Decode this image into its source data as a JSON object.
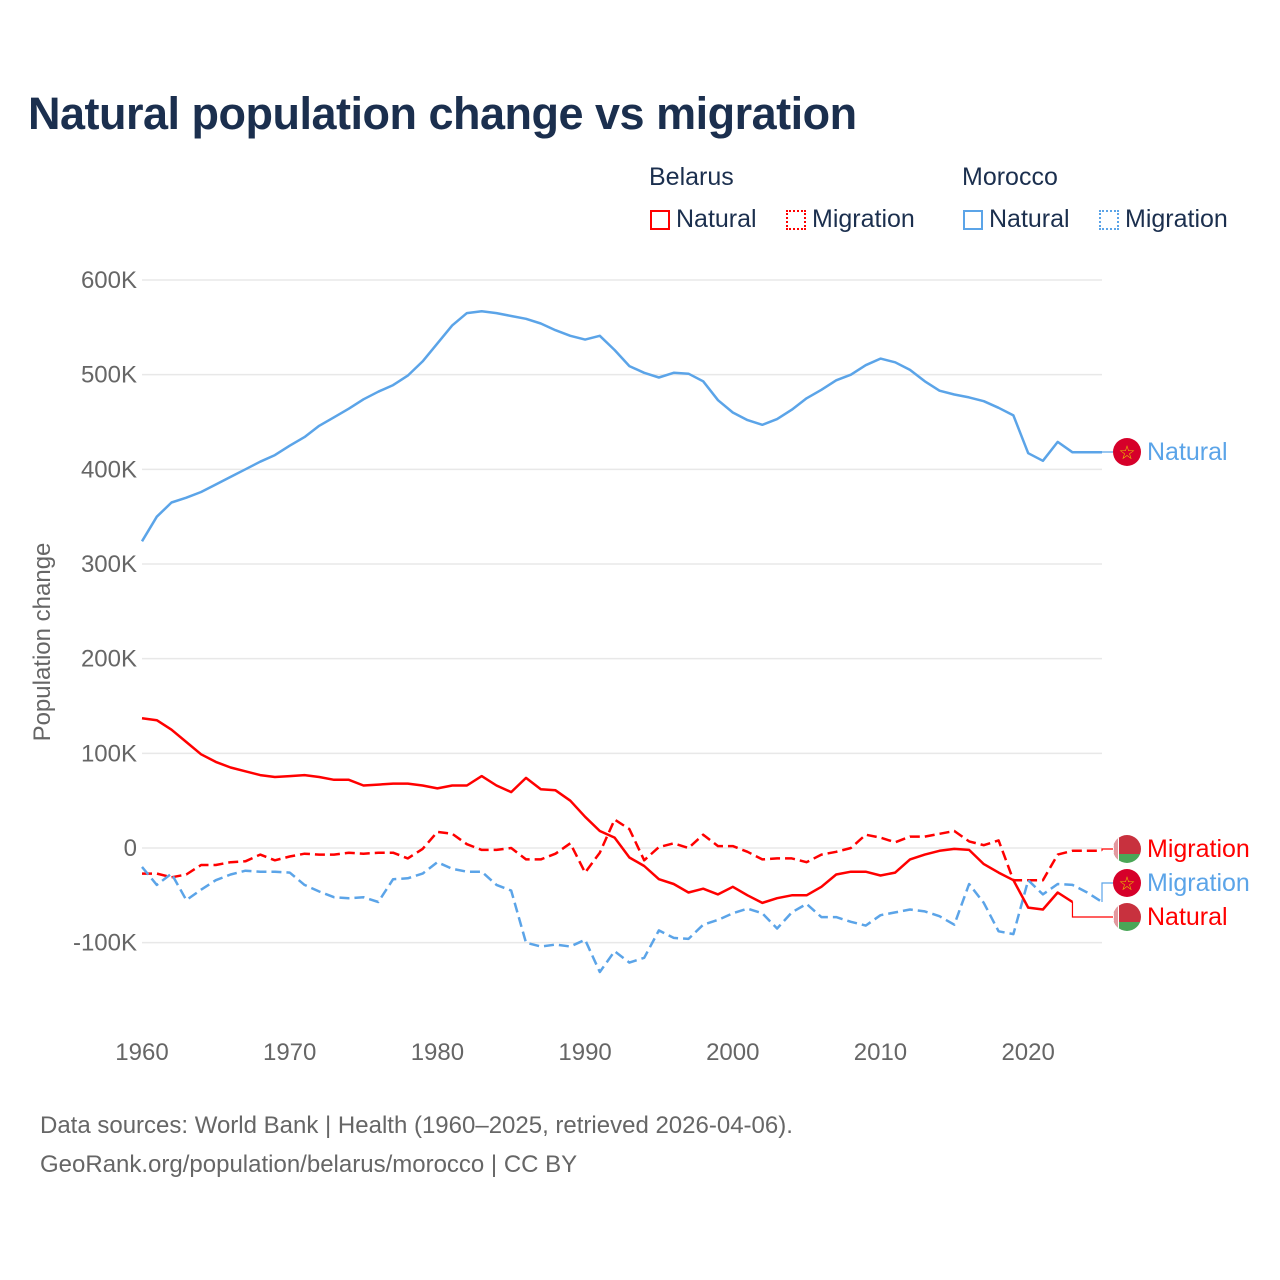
{
  "title": "Natural population change vs migration",
  "legend": {
    "groups": [
      {
        "name": "Belarus",
        "color": "#ff0000",
        "items": [
          "Natural",
          "Migration"
        ]
      },
      {
        "name": "Morocco",
        "color": "#5ba4e8",
        "items": [
          "Natural",
          "Migration"
        ]
      }
    ]
  },
  "footer": {
    "line1": "Data sources: World Bank | Health (1960–2025, retrieved 2026-04-06).",
    "line2": "GeoRank.org/population/belarus/morocco | CC BY"
  },
  "chart_data": {
    "type": "line",
    "title": "Natural population change vs migration",
    "xlabel": "",
    "ylabel": "Population change",
    "xlim": [
      1960,
      2025
    ],
    "ylim": [
      -150000,
      600000
    ],
    "x_ticks": [
      "1960",
      "1970",
      "1980",
      "1990",
      "2000",
      "2010",
      "2020"
    ],
    "y_ticks": [
      {
        "value": 600000,
        "label": "600K"
      },
      {
        "value": 500000,
        "label": "500K"
      },
      {
        "value": 400000,
        "label": "400K"
      },
      {
        "value": 300000,
        "label": "300K"
      },
      {
        "value": 200000,
        "label": "200K"
      },
      {
        "value": 100000,
        "label": "100K"
      },
      {
        "value": 0,
        "label": "0"
      },
      {
        "value": -100000,
        "label": "-100K"
      }
    ],
    "grid": true,
    "legend_position": "top-right",
    "x_start": 1960,
    "series": [
      {
        "name": "Morocco Natural",
        "label": "Natural",
        "country": "Morocco",
        "color": "#5ba4e8",
        "dash": "solid",
        "values_thousands": [
          324,
          350,
          365,
          370,
          376,
          384,
          392,
          400,
          408,
          415,
          425,
          434,
          446,
          455,
          464,
          474,
          482,
          489,
          499,
          514,
          533,
          552,
          565,
          567,
          565,
          562,
          559,
          554,
          547,
          541,
          537,
          541,
          526,
          509,
          502,
          497,
          502,
          501,
          493,
          473,
          460,
          452,
          447,
          453,
          463,
          475,
          484,
          494,
          500,
          510,
          517,
          513,
          505,
          493,
          483,
          479,
          476,
          472,
          465,
          457,
          417,
          409,
          429,
          418,
          418,
          418
        ]
      },
      {
        "name": "Belarus Migration",
        "label": "Migration",
        "country": "Belarus",
        "color": "#ff0000",
        "dash": "dashed",
        "values_thousands": [
          -27,
          -27,
          -31,
          -28,
          -18,
          -18,
          -15,
          -14,
          -7,
          -13,
          -9,
          -6,
          -7,
          -7,
          -5,
          -6,
          -5,
          -5,
          -11,
          -1,
          17,
          15,
          4,
          -2,
          -2,
          0,
          -12,
          -12,
          -6,
          5,
          -26,
          -5,
          30,
          20,
          -13,
          1,
          5,
          0,
          14,
          2,
          2,
          -4,
          -12,
          -11,
          -11,
          -15,
          -7,
          -4,
          0,
          14,
          11,
          6,
          12,
          12,
          15,
          18,
          7,
          3,
          8,
          -34,
          -34,
          -34,
          -7,
          -3,
          -3,
          -3
        ]
      },
      {
        "name": "Morocco Migration",
        "label": "Migration",
        "country": "Morocco",
        "color": "#5ba4e8",
        "dash": "dashed",
        "values_thousands": [
          -20,
          -39,
          -27,
          -55,
          -44,
          -34,
          -28,
          -24,
          -25,
          -25,
          -26,
          -39,
          -46,
          -52,
          -53,
          -52,
          -57,
          -33,
          -32,
          -27,
          -15,
          -22,
          -25,
          -25,
          -39,
          -45,
          -100,
          -104,
          -102,
          -104,
          -97,
          -131,
          -109,
          -121,
          -116,
          -87,
          -95,
          -96,
          -81,
          -76,
          -69,
          -64,
          -69,
          -85,
          -68,
          -59,
          -73,
          -73,
          -78,
          -82,
          -71,
          -68,
          -65,
          -67,
          -72,
          -81,
          -38,
          -58,
          -88,
          -91,
          -34,
          -49,
          -38,
          -39,
          -47,
          -57
        ]
      },
      {
        "name": "Belarus Natural",
        "label": "Natural",
        "country": "Belarus",
        "color": "#ff0000",
        "dash": "solid",
        "values_thousands": [
          137,
          135,
          125,
          112,
          99,
          91,
          85,
          81,
          77,
          75,
          76,
          77,
          75,
          72,
          72,
          66,
          67,
          68,
          68,
          66,
          63,
          66,
          66,
          76,
          66,
          59,
          74,
          62,
          61,
          50,
          33,
          18,
          11,
          -10,
          -19,
          -33,
          -38,
          -47,
          -43,
          -49,
          -41,
          -50,
          -58,
          -53,
          -50,
          -50,
          -41,
          -28,
          -25,
          -25,
          -29,
          -26,
          -12,
          -7,
          -3,
          -1,
          -2,
          -17,
          -26,
          -34,
          -63,
          -65,
          -47,
          -57,
          null,
          null
        ]
      }
    ]
  }
}
